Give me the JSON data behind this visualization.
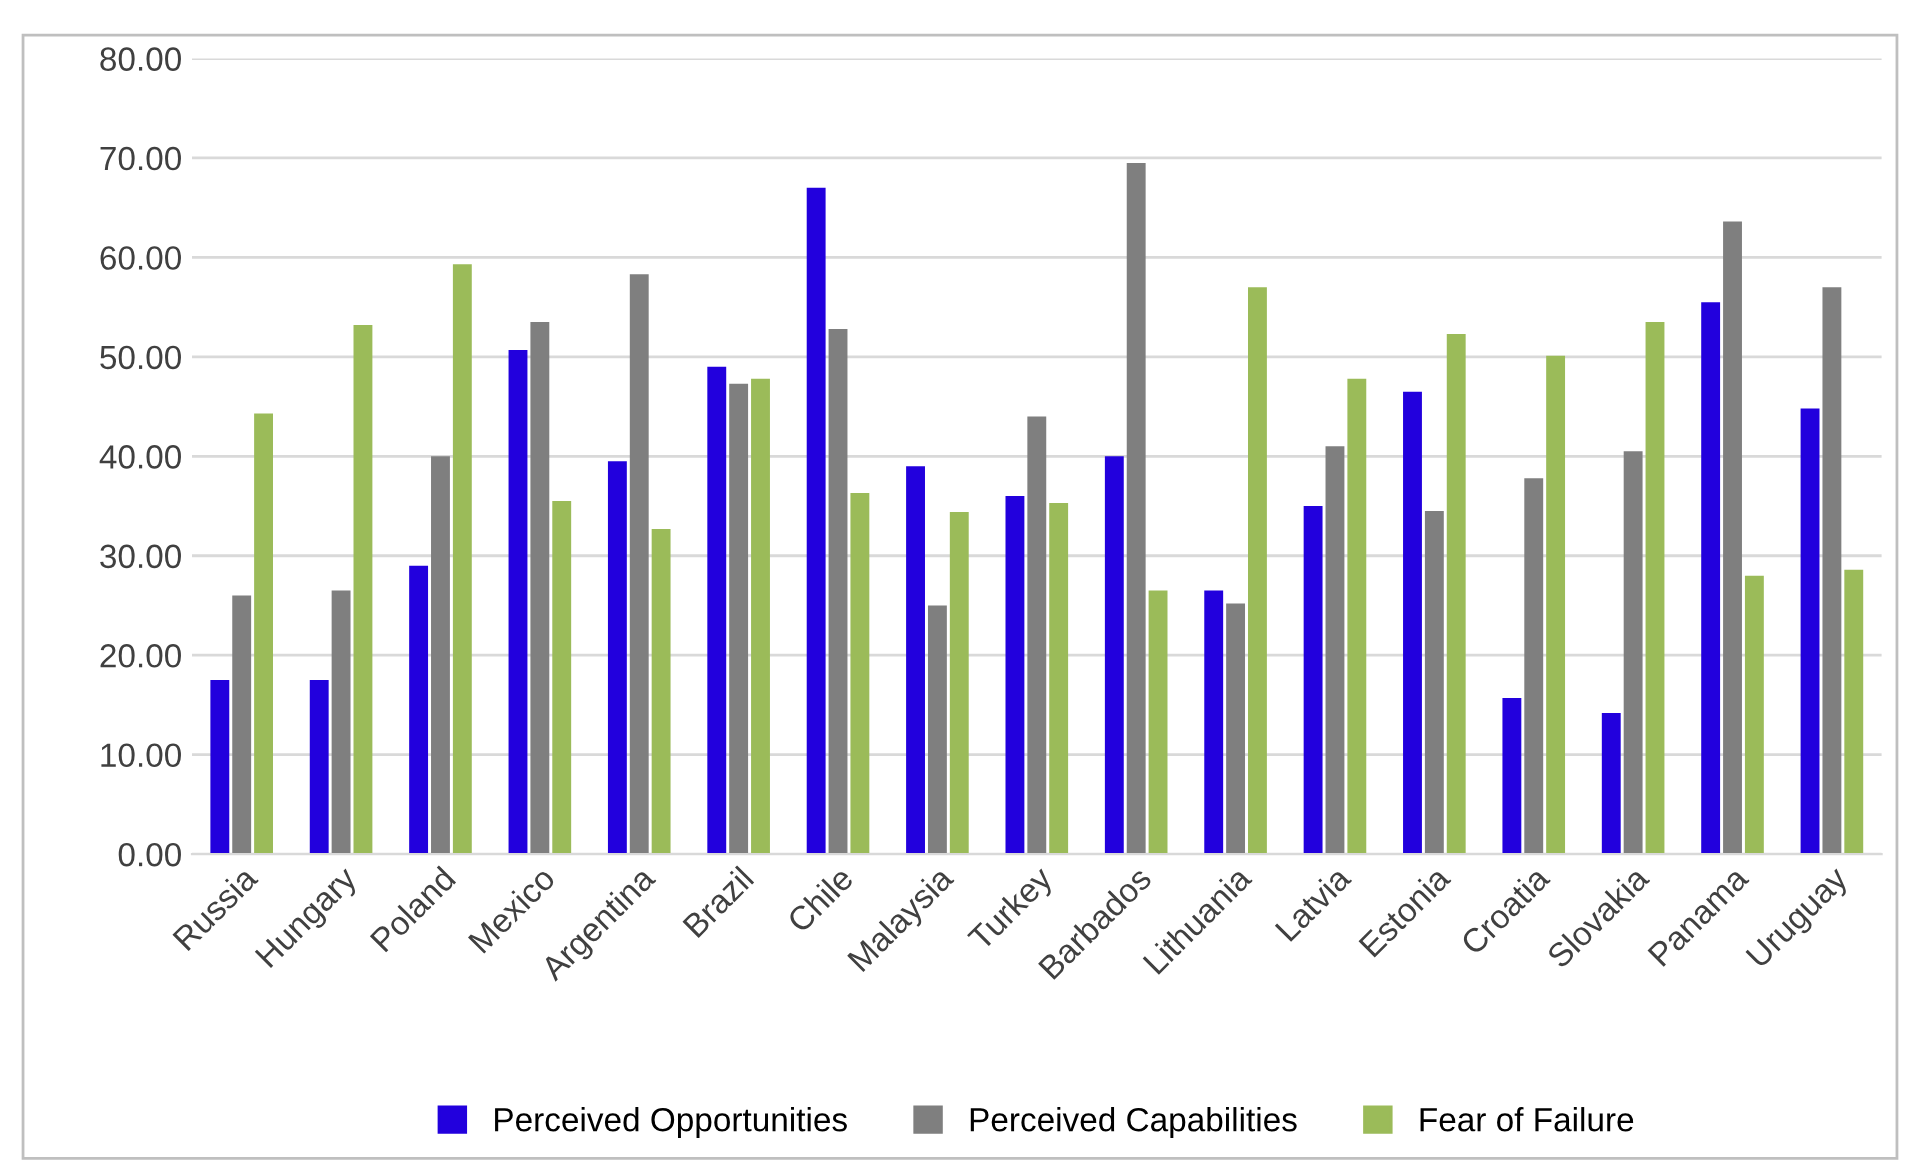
{
  "chart_data": {
    "type": "bar",
    "categories": [
      "Russia",
      "Hungary",
      "Poland",
      "Mexico",
      "Argentina",
      "Brazil",
      "Chile",
      "Malaysia",
      "Turkey",
      "Barbados",
      "Lithuania",
      "Latvia",
      "Estonia",
      "Croatia",
      "Slovakia",
      "Panama",
      "Uruguay"
    ],
    "series": [
      {
        "name": "Perceived Opportunities",
        "color": "#2200dd",
        "values": [
          17.5,
          17.5,
          29,
          50.7,
          39.5,
          49,
          67,
          39,
          36,
          40,
          26.5,
          35,
          46.5,
          15.7,
          14.2,
          55.5,
          44.8
        ]
      },
      {
        "name": "Perceived Capabilities",
        "color": "#7f7f7f",
        "values": [
          26,
          26.5,
          40,
          53.5,
          58.3,
          47.3,
          52.8,
          25,
          44,
          69.5,
          25.2,
          41,
          34.5,
          37.8,
          40.5,
          63.6,
          57
        ]
      },
      {
        "name": "Fear of Failure",
        "color": "#9bbb59",
        "values": [
          44.3,
          53.2,
          59.3,
          35.5,
          32.7,
          47.8,
          36.3,
          34.4,
          35.3,
          26.5,
          57,
          47.8,
          52.3,
          50.1,
          53.5,
          28,
          28.6
        ]
      }
    ],
    "ylim": [
      0,
      80
    ],
    "yticks": [
      {
        "value": 0,
        "label": "0.00"
      },
      {
        "value": 10,
        "label": "10.00"
      },
      {
        "value": 20,
        "label": "20.00"
      },
      {
        "value": 30,
        "label": "30.00"
      },
      {
        "value": 40,
        "label": "40.00"
      },
      {
        "value": 50,
        "label": "50.00"
      },
      {
        "value": 60,
        "label": "60.00"
      },
      {
        "value": 70,
        "label": "70.00"
      },
      {
        "value": 80,
        "label": "80.00"
      }
    ],
    "grid": "y",
    "legend": "bottom"
  }
}
